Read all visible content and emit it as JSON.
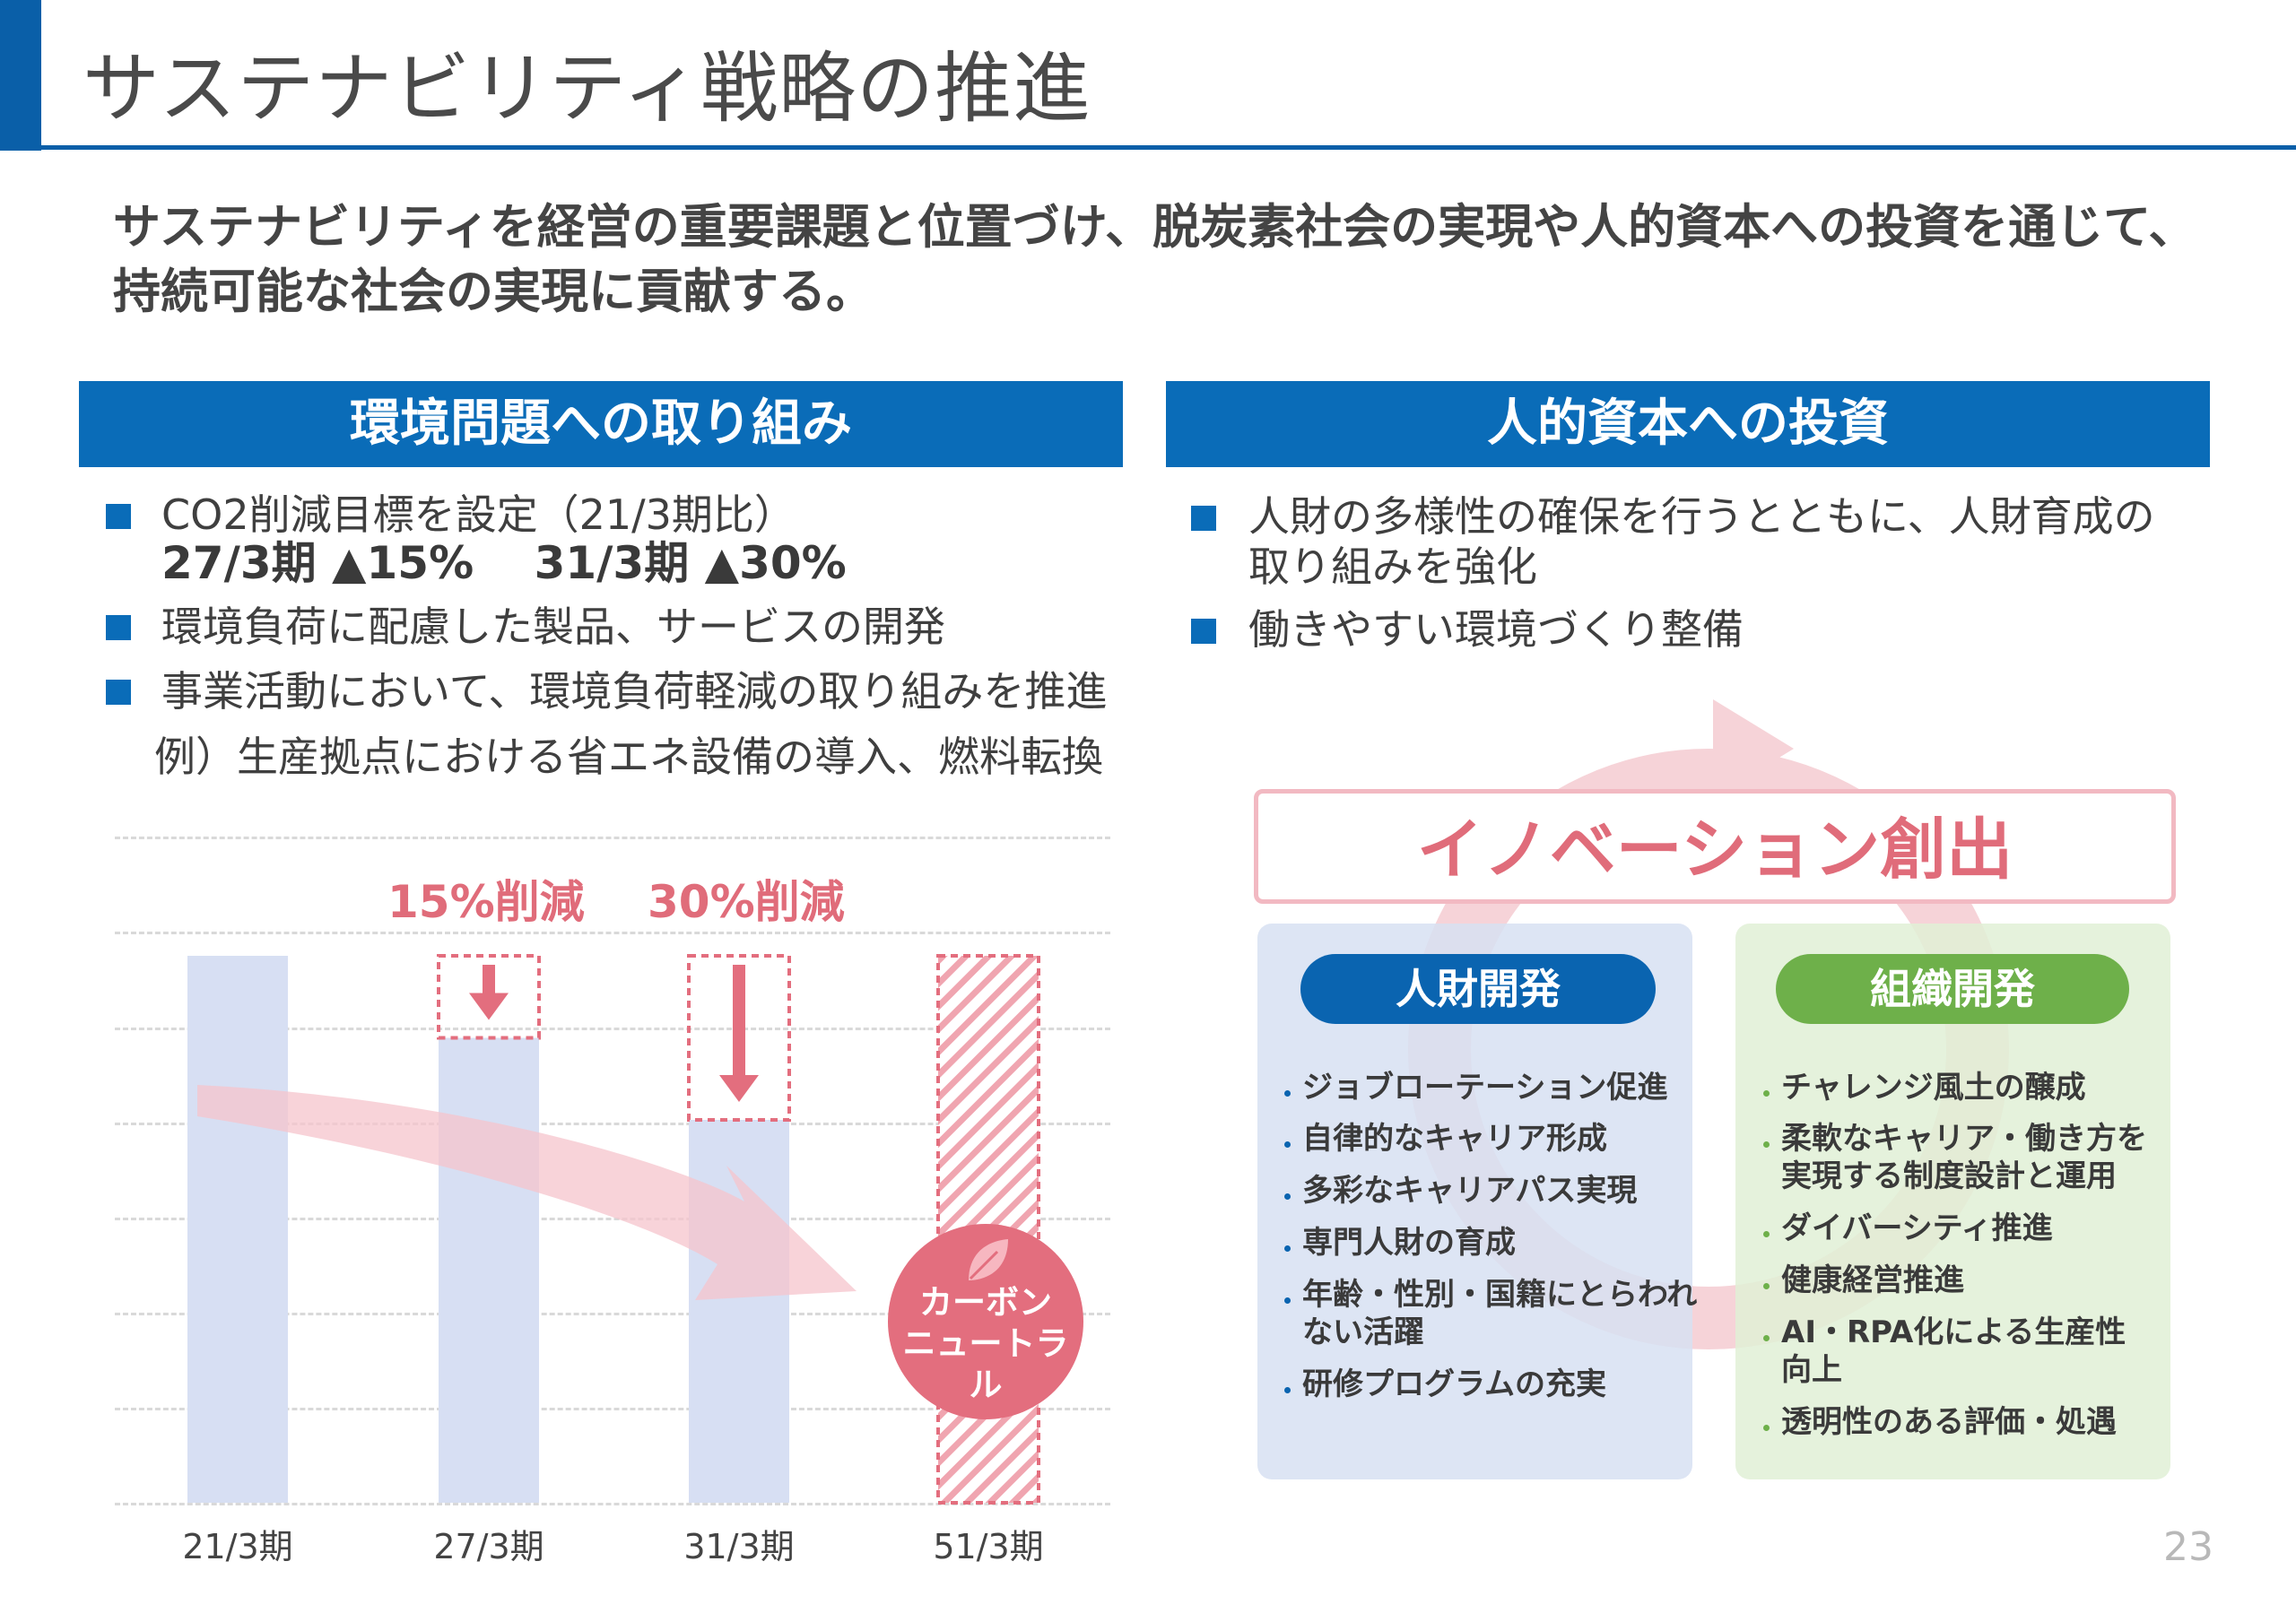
{
  "title": "サステナビリティ戦略の推進",
  "subtitle": "サステナビリティを経営の重要課題と位置づけ、脱炭素社会の実現や人的資本への投資を通じて、持続可能な社会の実現に貢献する。",
  "env_section": {
    "header": "環境問題への取り組み",
    "bullets": [
      "CO2削減目標を設定（21/3期比）",
      "環境負荷に配慮した製品、サービスの開発",
      "事業活動において、環境負荷軽減の取り組みを推進"
    ],
    "target_line": "27/3期 ▲15%　 31/3期 ▲30%",
    "example_line": "例）生産拠点における省エネ設備の導入、燃料転換"
  },
  "hr_section": {
    "header": "人的資本への投資",
    "bullets": [
      "人財の多様性の確保を行うとともに、人財育成の",
      "働きやすい環境づくり整備"
    ],
    "bullet1_cont": "取り組みを強化",
    "innovation": "イノベーション創出",
    "talent": {
      "title": "人財開発",
      "items": [
        "ジョブローテーション促進",
        "自律的なキャリア形成",
        "多彩なキャリアパス実現",
        "専門人財の育成",
        "年齢・性別・国籍にとらわれ",
        "研修プログラムの充実"
      ],
      "item5_cont": "ない活躍"
    },
    "org": {
      "title": "組織開発",
      "items": [
        "チャレンジ風土の醸成",
        "柔軟なキャリア・働き方を",
        "ダイバーシティ推進",
        "健康経営推進",
        "AI・RPA化による生産性",
        "透明性のある評価・処遇"
      ],
      "item2_cont": "実現する制度設計と運用",
      "item5_cont": "向上"
    }
  },
  "chart_data": {
    "type": "bar",
    "categories": [
      "21/3期",
      "27/3期",
      "31/3期",
      "51/3期"
    ],
    "values": [
      100,
      85,
      70,
      0
    ],
    "callouts": [
      "15%削減",
      "30%削減"
    ],
    "end_label": [
      "カーボン",
      "ニュートラル"
    ],
    "ylim": [
      0,
      100
    ],
    "grid": true
  },
  "colors": {
    "brand_blue": "#0a6cb8",
    "accent_pink": "#e36e7e",
    "bar_fill": "#d7dff3",
    "org_green": "#6eb04a"
  },
  "icons": {
    "carbon": "leaf-icon"
  },
  "page_number": "23"
}
